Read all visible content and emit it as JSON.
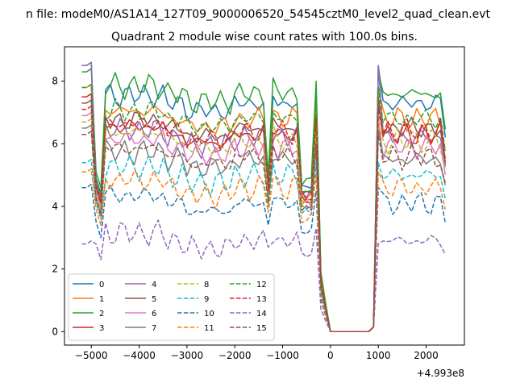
{
  "figure": {
    "suptitle": "n file: modeM0/AS1A14_127T09_9000006520_54545cztM0_level2_quad_clean.evt",
    "title": "Quadrant 2 module wise count rates with 100.0s bins."
  },
  "chart_data": {
    "type": "line",
    "title": "Quadrant 2 module wise count rates with 100.0s bins.",
    "xlabel": "",
    "ylabel": "",
    "x_offset_label": "+4.993e8",
    "xlim": [
      -5560,
      2800
    ],
    "ylim": [
      -0.43,
      9.1
    ],
    "grid": false,
    "legend_placement": "lower-left",
    "xticks": [
      {
        "value": -5000,
        "label": "−5000"
      },
      {
        "value": -4000,
        "label": "−4000"
      },
      {
        "value": -3000,
        "label": "−3000"
      },
      {
        "value": -2000,
        "label": "−2000"
      },
      {
        "value": -1000,
        "label": "−1000"
      },
      {
        "value": 0,
        "label": "0"
      },
      {
        "value": 1000,
        "label": "1000"
      },
      {
        "value": 2000,
        "label": "2000"
      }
    ],
    "yticks": [
      {
        "value": 0,
        "label": "0"
      },
      {
        "value": 2,
        "label": "2"
      },
      {
        "value": 4,
        "label": "4"
      },
      {
        "value": 6,
        "label": "6"
      },
      {
        "value": 8,
        "label": "8"
      }
    ],
    "series": [
      {
        "name": "0",
        "color": "#1f77b4",
        "style": "solid",
        "level": 7.3,
        "start": 8.5,
        "dip": 4.4
      },
      {
        "name": "1",
        "color": "#ff7f0e",
        "style": "solid",
        "level": 6.8,
        "start": 7.8,
        "dip": 4.1
      },
      {
        "name": "2",
        "color": "#2ca02c",
        "style": "solid",
        "level": 7.6,
        "start": 8.3,
        "dip": 4.6
      },
      {
        "name": "3",
        "color": "#d62728",
        "style": "solid",
        "level": 6.3,
        "start": 7.5,
        "dip": 4.0
      },
      {
        "name": "4",
        "color": "#9467bd",
        "style": "solid",
        "level": 6.2,
        "start": 8.5,
        "dip": 4.3
      },
      {
        "name": "5",
        "color": "#8c564b",
        "style": "solid",
        "level": 6.5,
        "start": 7.3,
        "dip": 4.2
      },
      {
        "name": "6",
        "color": "#e377c2",
        "style": "solid",
        "level": 5.9,
        "start": 6.9,
        "dip": 4.0
      },
      {
        "name": "7",
        "color": "#7f7f7f",
        "style": "solid",
        "level": 5.5,
        "start": 6.5,
        "dip": 3.8
      },
      {
        "name": "8",
        "color": "#bcbd22",
        "style": "dashed",
        "level": 6.1,
        "start": 6.7,
        "dip": 3.9
      },
      {
        "name": "9",
        "color": "#17becf",
        "style": "dashed",
        "level": 5.0,
        "start": 5.4,
        "dip": 3.6
      },
      {
        "name": "10",
        "color": "#1f77b4",
        "style": "dashed",
        "level": 4.1,
        "start": 4.6,
        "dip": 3.0
      },
      {
        "name": "11",
        "color": "#ff7f0e",
        "style": "dashed",
        "level": 4.6,
        "start": 5.1,
        "dip": 3.4
      },
      {
        "name": "12",
        "color": "#2ca02c",
        "style": "dashed",
        "level": 6.8,
        "start": 7.8,
        "dip": 4.3
      },
      {
        "name": "13",
        "color": "#d62728",
        "style": "dashed",
        "level": 6.4,
        "start": 7.1,
        "dip": 4.1
      },
      {
        "name": "14",
        "color": "#9467bd",
        "style": "dashed",
        "level": 2.9,
        "start": 2.8,
        "dip": 2.3
      },
      {
        "name": "15",
        "color": "#8c564b",
        "style": "dashed",
        "level": 5.6,
        "start": 6.3,
        "dip": 3.7
      }
    ]
  }
}
